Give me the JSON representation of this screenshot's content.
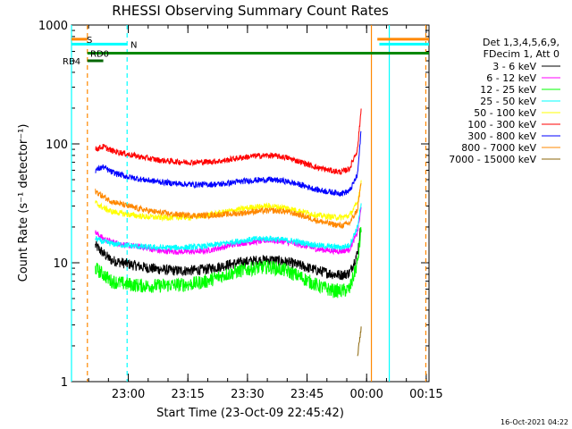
{
  "chart_data": {
    "type": "line",
    "title": "RHESSI Observing Summary Count Rates",
    "xlabel": "Start Time (23-Oct-09 22:45:42)",
    "ylabel": "Count Rate (s⁻¹ detector⁻¹)",
    "yscale": "log",
    "ylim": [
      1,
      1000
    ],
    "xlim_minutes_after_start": [
      0,
      90
    ],
    "x_ticks": [
      "23:00",
      "23:15",
      "23:30",
      "23:45",
      "00:00",
      "00:15"
    ],
    "x_tick_minutes": [
      14.3,
      29.3,
      44.3,
      59.3,
      74.3,
      89.3
    ],
    "y_ticks": [
      "1",
      "10",
      "100",
      "1000"
    ],
    "y_tick_values": [
      1,
      10,
      100,
      1000
    ],
    "legend_title_lines": [
      "Det 1,3,4,5,6,9,",
      "FDecim 1, Att 0"
    ],
    "legend_position": "right",
    "x_sample_minutes": [
      6,
      8,
      10,
      14,
      18,
      22,
      26,
      30,
      34,
      38,
      42,
      46,
      50,
      54,
      58,
      62,
      66,
      68,
      70,
      72,
      73
    ],
    "series": [
      {
        "name": "3 - 6 keV",
        "color": "#000000",
        "values": [
          14,
          12,
          10.5,
          9.8,
          9.2,
          8.8,
          8.6,
          8.6,
          8.8,
          9.4,
          10,
          10.4,
          10.6,
          10.2,
          9.4,
          8.6,
          8.0,
          7.9,
          8.2,
          12,
          22
        ]
      },
      {
        "name": "6 - 12 keV",
        "color": "#ff00ff",
        "values": [
          18,
          16,
          15,
          14,
          13.5,
          12.6,
          12.4,
          12.4,
          12.6,
          13.5,
          14.5,
          15,
          15.5,
          15,
          14,
          13,
          12.6,
          12.5,
          13,
          18,
          30
        ]
      },
      {
        "name": "12 - 25 keV",
        "color": "#00ff00",
        "values": [
          9,
          8,
          7,
          6.6,
          6.4,
          6.4,
          6.5,
          6.6,
          7,
          7.8,
          8.5,
          9,
          9.2,
          8.6,
          7.5,
          6.4,
          5.8,
          5.8,
          6,
          10,
          20
        ]
      },
      {
        "name": "25 - 50 keV",
        "color": "#00ffff",
        "values": [
          16,
          15,
          14.5,
          14,
          13.6,
          13.4,
          13.4,
          13.5,
          13.8,
          14.5,
          15.2,
          15.8,
          16,
          15.5,
          14.8,
          14,
          13.6,
          13.5,
          14,
          20,
          32
        ]
      },
      {
        "name": "50 - 100 keV",
        "color": "#ffff00",
        "values": [
          32,
          29,
          27,
          25.5,
          24.5,
          24,
          24,
          24.2,
          25,
          26.5,
          28,
          29.5,
          30,
          29,
          27,
          25,
          24.2,
          24,
          25,
          32,
          50
        ]
      },
      {
        "name": "100 - 300 keV",
        "color": "#ff0000",
        "values": [
          90,
          95,
          88,
          82,
          77,
          73,
          71,
          70,
          70.5,
          72,
          76,
          79,
          80,
          77,
          70,
          63,
          59,
          58,
          62,
          90,
          210
        ]
      },
      {
        "name": "300 - 800 keV",
        "color": "#0000ff",
        "values": [
          60,
          64,
          58,
          53,
          50,
          48,
          46.5,
          45.5,
          45.5,
          46,
          48,
          49.5,
          50,
          48.5,
          45,
          41,
          39,
          38.5,
          40,
          55,
          140
        ]
      },
      {
        "name": "800 - 7000 keV",
        "color": "#ff8800",
        "values": [
          40,
          36,
          33,
          30,
          28,
          26.5,
          25.5,
          25,
          25,
          25.5,
          26,
          27,
          27.5,
          27,
          25,
          22.5,
          21,
          20.5,
          21.5,
          28,
          50
        ]
      },
      {
        "name": "7000 - 15000 keV",
        "color": "#8b6508",
        "values": [
          null,
          null,
          null,
          null,
          null,
          null,
          null,
          null,
          null,
          null,
          null,
          null,
          null,
          null,
          null,
          null,
          null,
          null,
          null,
          1.6,
          3
        ]
      }
    ],
    "flags": [
      {
        "label": "S",
        "color": "#ff8800",
        "value": 760,
        "start_min": 0,
        "end_min": 4,
        "start2_min": 77,
        "end2_min": 90
      },
      {
        "label": "N",
        "color": "#00ffff",
        "value": 690,
        "start_min": 0,
        "end_min": 14,
        "start2_min": 77.5,
        "end2_min": 90
      },
      {
        "label": "RD0",
        "color": "#008800",
        "value": 580,
        "start_min": 4,
        "end_min": 90
      },
      {
        "label": "RB4",
        "color": "#006600",
        "value": 500,
        "start_min": 4,
        "end_min": 8
      }
    ],
    "vlines": [
      {
        "color": "#00ffff",
        "style": "solid",
        "minute": 0
      },
      {
        "color": "#ff8800",
        "style": "dashed",
        "minute": 4
      },
      {
        "color": "#00ffff",
        "style": "dashed",
        "minute": 14
      },
      {
        "color": "#ff8800",
        "style": "solid",
        "minute": 75.5
      },
      {
        "color": "#00ffff",
        "style": "solid",
        "minute": 80
      },
      {
        "color": "#ff8800",
        "style": "dashed",
        "minute": 89.2
      }
    ]
  },
  "footer": {
    "timestamp": "16-Oct-2021 04:22"
  }
}
